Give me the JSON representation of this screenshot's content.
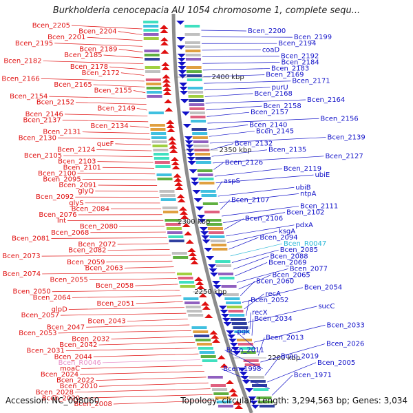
{
  "title": "Burkholderia cenocepacia AU 1054 chromosome 1, complete sequ...",
  "footer": {
    "accession": "Accession: NC_008060",
    "topology": "Topology: circular; Length: 3,294,563 bp; Genes: 3,034"
  },
  "colors": {
    "left_genes": "#e01010",
    "right_genes": "#1010c8",
    "backbone": "#8c8c8c",
    "rna": "#2cb8d8",
    "pseudo": "#e890c8"
  },
  "scale_ticks": [
    {
      "label": "2400 kbp",
      "side": "right"
    },
    {
      "label": "2350 kbp",
      "side": "right"
    },
    {
      "label": "2300 kbp",
      "side": "left"
    },
    {
      "label": "2250 kbp",
      "side": "left"
    },
    {
      "label": "2200 kbp",
      "side": "right"
    }
  ],
  "left_labels": [
    {
      "text": "Bcen_2205",
      "type": "cds"
    },
    {
      "text": "Bcen_2204",
      "type": "cds"
    },
    {
      "text": "Bcen_2201",
      "type": "cds"
    },
    {
      "text": "Bcen_2195",
      "type": "cds"
    },
    {
      "text": "Bcen_2189",
      "type": "cds"
    },
    {
      "text": "Bcen_2185",
      "type": "cds"
    },
    {
      "text": "Bcen_2182",
      "type": "cds"
    },
    {
      "text": "Bcen_2178",
      "type": "cds"
    },
    {
      "text": "Bcen_2172",
      "type": "cds"
    },
    {
      "text": "Bcen_2166",
      "type": "cds"
    },
    {
      "text": "Bcen_2165",
      "type": "cds"
    },
    {
      "text": "Bcen_2155",
      "type": "cds"
    },
    {
      "text": "Bcen_2154",
      "type": "cds"
    },
    {
      "text": "Bcen_2152",
      "type": "cds"
    },
    {
      "text": "Bcen_2149",
      "type": "cds"
    },
    {
      "text": "Bcen_2146",
      "type": "cds"
    },
    {
      "text": "Bcen_2137",
      "type": "cds"
    },
    {
      "text": "Bcen_2134",
      "type": "cds"
    },
    {
      "text": "Bcen_2131",
      "type": "cds"
    },
    {
      "text": "Bcen_2130",
      "type": "cds"
    },
    {
      "text": "queF",
      "type": "cds"
    },
    {
      "text": "Bcen_2124",
      "type": "cds"
    },
    {
      "text": "Bcen_2105",
      "type": "cds"
    },
    {
      "text": "Bcen_2103",
      "type": "cds"
    },
    {
      "text": "Bcen_2101",
      "type": "cds"
    },
    {
      "text": "Bcen_2100",
      "type": "cds"
    },
    {
      "text": "Bcen_2095",
      "type": "cds"
    },
    {
      "text": "Bcen_2091",
      "type": "cds"
    },
    {
      "text": "glyQ",
      "type": "cds"
    },
    {
      "text": "Bcen_2092",
      "type": "cds"
    },
    {
      "text": "glyS",
      "type": "cds"
    },
    {
      "text": "Bcen_2084",
      "type": "cds"
    },
    {
      "text": "Bcen_2076",
      "type": "cds"
    },
    {
      "text": "Int",
      "type": "cds"
    },
    {
      "text": "Bcen_2080",
      "type": "cds"
    },
    {
      "text": "Bcen_2068",
      "type": "cds"
    },
    {
      "text": "Bcen_2081",
      "type": "cds"
    },
    {
      "text": "Bcen_2072",
      "type": "cds"
    },
    {
      "text": "Bcen_2082",
      "type": "cds"
    },
    {
      "text": "Bcen_2073",
      "type": "cds"
    },
    {
      "text": "Bcen_2059",
      "type": "cds"
    },
    {
      "text": "Bcen_2063",
      "type": "cds"
    },
    {
      "text": "Bcen_2074",
      "type": "cds"
    },
    {
      "text": "Bcen_2055",
      "type": "cds"
    },
    {
      "text": "Bcen_2058",
      "type": "cds"
    },
    {
      "text": "Bcen_2050",
      "type": "cds"
    },
    {
      "text": "Bcen_2064",
      "type": "cds"
    },
    {
      "text": "Bcen_2051",
      "type": "cds"
    },
    {
      "text": "glpD",
      "type": "cds"
    },
    {
      "text": "Bcen_2057",
      "type": "cds"
    },
    {
      "text": "Bcen_2043",
      "type": "cds"
    },
    {
      "text": "Bcen_2047",
      "type": "cds"
    },
    {
      "text": "Bcen_2053",
      "type": "cds"
    },
    {
      "text": "Bcen_2032",
      "type": "cds"
    },
    {
      "text": "Bcen_2042",
      "type": "cds"
    },
    {
      "text": "Bcen_2031",
      "type": "cds"
    },
    {
      "text": "Bcen_2044",
      "type": "cds"
    },
    {
      "text": "Bcen_R0046",
      "type": "rna"
    },
    {
      "text": "moaC",
      "type": "cds"
    },
    {
      "text": "Bcen_2024",
      "type": "cds"
    },
    {
      "text": "Bcen_2022",
      "type": "cds"
    },
    {
      "text": "Bcen_2010",
      "type": "cds"
    },
    {
      "text": "Bcen_2028",
      "type": "cds"
    },
    {
      "text": "Bcen_2020",
      "type": "cds"
    },
    {
      "text": "Bcen_2008",
      "type": "cds"
    }
  ],
  "right_labels": [
    {
      "text": "Bcen_2200",
      "type": "cds"
    },
    {
      "text": "Bcen_2199",
      "type": "cds"
    },
    {
      "text": "Bcen_2194",
      "type": "cds"
    },
    {
      "text": "coaD",
      "type": "cds"
    },
    {
      "text": "Bcen_2192",
      "type": "cds"
    },
    {
      "text": "Bcen_2184",
      "type": "cds"
    },
    {
      "text": "Bcen_2183",
      "type": "cds"
    },
    {
      "text": "Bcen_2169",
      "type": "cds"
    },
    {
      "text": "Bcen_2171",
      "type": "cds"
    },
    {
      "text": "purU",
      "type": "cds"
    },
    {
      "text": "Bcen_2168",
      "type": "cds"
    },
    {
      "text": "Bcen_2164",
      "type": "cds"
    },
    {
      "text": "Bcen_2158",
      "type": "cds"
    },
    {
      "text": "Bcen_2157",
      "type": "cds"
    },
    {
      "text": "Bcen_2156",
      "type": "cds"
    },
    {
      "text": "Bcen_2140",
      "type": "cds"
    },
    {
      "text": "Bcen_2145",
      "type": "cds"
    },
    {
      "text": "Bcen_2139",
      "type": "cds"
    },
    {
      "text": "Bcen_2132",
      "type": "cds"
    },
    {
      "text": "Bcen_2135",
      "type": "cds"
    },
    {
      "text": "Bcen_2127",
      "type": "cds"
    },
    {
      "text": "Bcen_2126",
      "type": "cds"
    },
    {
      "text": "Bcen_2119",
      "type": "cds"
    },
    {
      "text": "ubiE",
      "type": "cds"
    },
    {
      "text": "aspS",
      "type": "cds"
    },
    {
      "text": "ubiB",
      "type": "cds"
    },
    {
      "text": "ntpA",
      "type": "cds"
    },
    {
      "text": "Bcen_2107",
      "type": "cds"
    },
    {
      "text": "Bcen_2111",
      "type": "cds"
    },
    {
      "text": "Bcen_2102",
      "type": "cds"
    },
    {
      "text": "Bcen_2106",
      "type": "cds"
    },
    {
      "text": "pdxA",
      "type": "cds"
    },
    {
      "text": "ksgA",
      "type": "cds"
    },
    {
      "text": "Bcen_2094",
      "type": "cds"
    },
    {
      "text": "Bcen_R0047",
      "type": "rna"
    },
    {
      "text": "Bcen_2085",
      "type": "cds"
    },
    {
      "text": "Bcen_2088",
      "type": "cds"
    },
    {
      "text": "Bcen_2069",
      "type": "cds"
    },
    {
      "text": "Bcen_2077",
      "type": "cds"
    },
    {
      "text": "Bcen_2065",
      "type": "cds"
    },
    {
      "text": "Bcen_2060",
      "type": "cds"
    },
    {
      "text": "Bcen_2054",
      "type": "cds"
    },
    {
      "text": "recA",
      "type": "cds"
    },
    {
      "text": "Bcen_2052",
      "type": "cds"
    },
    {
      "text": "sucC",
      "type": "cds"
    },
    {
      "text": "recX",
      "type": "cds"
    },
    {
      "text": "Bcen_2034",
      "type": "cds"
    },
    {
      "text": "Bcen_2033",
      "type": "cds"
    },
    {
      "text": "pgk",
      "type": "cds"
    },
    {
      "text": "Bcen_2013",
      "type": "cds"
    },
    {
      "text": "Bcen_2026",
      "type": "cds"
    },
    {
      "text": "Bcen_2011",
      "type": "cds"
    },
    {
      "text": "Bcen_2019",
      "type": "cds"
    },
    {
      "text": "Bcen_2005",
      "type": "cds"
    },
    {
      "text": "Bcen_1998",
      "type": "cds"
    },
    {
      "text": "Bcen_1971",
      "type": "cds"
    }
  ]
}
